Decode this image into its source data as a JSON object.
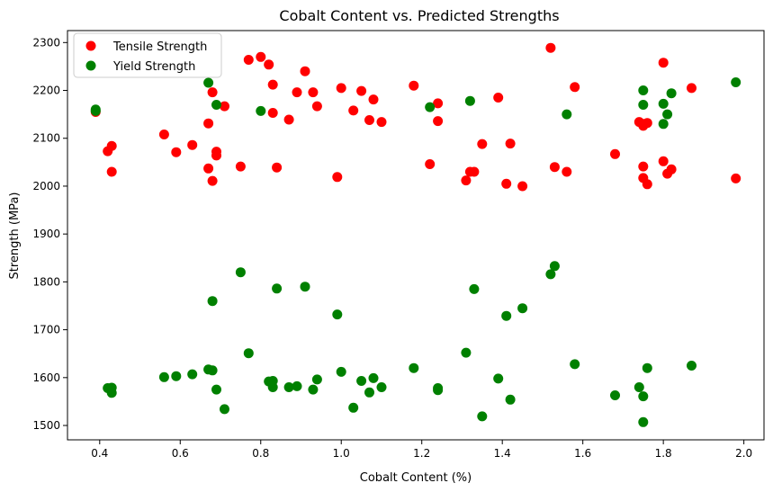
{
  "chart_data": {
    "type": "scatter",
    "title": "Cobalt Content vs. Predicted Strengths",
    "xlabel": "Cobalt Content (%)",
    "ylabel": "Strength (MPa)",
    "xlim": [
      0.32,
      2.05
    ],
    "ylim": [
      1470,
      2325
    ],
    "xticks": [
      0.4,
      0.6,
      0.8,
      1.0,
      1.2,
      1.4,
      1.6,
      1.8,
      2.0
    ],
    "xtick_labels": [
      "0.4",
      "0.6",
      "0.8",
      "1.0",
      "1.2",
      "1.4",
      "1.6",
      "1.8",
      "2.0"
    ],
    "yticks": [
      1500,
      1600,
      1700,
      1800,
      1900,
      2000,
      2100,
      2200,
      2300
    ],
    "ytick_labels": [
      "1500",
      "1600",
      "1700",
      "1800",
      "1900",
      "2000",
      "2100",
      "2200",
      "2300"
    ],
    "grid": false,
    "legend_position": "top-left",
    "series": [
      {
        "name": "Tensile Strength",
        "color": "#ff0000",
        "points": [
          [
            0.39,
            2155
          ],
          [
            0.42,
            2073
          ],
          [
            0.43,
            2084
          ],
          [
            0.43,
            2030
          ],
          [
            0.56,
            2108
          ],
          [
            0.59,
            2071
          ],
          [
            0.63,
            2086
          ],
          [
            0.67,
            2037
          ],
          [
            0.67,
            2131
          ],
          [
            0.68,
            2196
          ],
          [
            0.68,
            2011
          ],
          [
            0.69,
            2064
          ],
          [
            0.69,
            2072
          ],
          [
            0.71,
            2167
          ],
          [
            0.75,
            2041
          ],
          [
            0.77,
            2264
          ],
          [
            0.8,
            2270
          ],
          [
            0.82,
            2254
          ],
          [
            0.83,
            2212
          ],
          [
            0.83,
            2153
          ],
          [
            0.84,
            2039
          ],
          [
            0.87,
            2139
          ],
          [
            0.89,
            2196
          ],
          [
            0.91,
            2240
          ],
          [
            0.93,
            2196
          ],
          [
            0.94,
            2167
          ],
          [
            0.99,
            2019
          ],
          [
            1.0,
            2205
          ],
          [
            1.03,
            2158
          ],
          [
            1.05,
            2199
          ],
          [
            1.07,
            2138
          ],
          [
            1.08,
            2181
          ],
          [
            1.1,
            2134
          ],
          [
            1.18,
            2210
          ],
          [
            1.22,
            2046
          ],
          [
            1.24,
            2136
          ],
          [
            1.24,
            2173
          ],
          [
            1.31,
            2012
          ],
          [
            1.32,
            2030
          ],
          [
            1.33,
            2030
          ],
          [
            1.35,
            2088
          ],
          [
            1.39,
            2185
          ],
          [
            1.41,
            2005
          ],
          [
            1.42,
            2089
          ],
          [
            1.45,
            2000
          ],
          [
            1.52,
            2289
          ],
          [
            1.53,
            2040
          ],
          [
            1.56,
            2030
          ],
          [
            1.58,
            2207
          ],
          [
            1.68,
            2067
          ],
          [
            1.74,
            2134
          ],
          [
            1.75,
            2041
          ],
          [
            1.75,
            2017
          ],
          [
            1.75,
            2130
          ],
          [
            1.75,
            2126
          ],
          [
            1.76,
            2132
          ],
          [
            1.76,
            2004
          ],
          [
            1.8,
            2258
          ],
          [
            1.8,
            2052
          ],
          [
            1.81,
            2026
          ],
          [
            1.82,
            2035
          ],
          [
            1.87,
            2205
          ],
          [
            1.98,
            2016
          ]
        ]
      },
      {
        "name": "Yield Strength",
        "color": "#008000",
        "points": [
          [
            0.39,
            2160
          ],
          [
            0.39,
            2157
          ],
          [
            0.42,
            1578
          ],
          [
            0.43,
            1579
          ],
          [
            0.43,
            1568
          ],
          [
            0.56,
            1601
          ],
          [
            0.59,
            1603
          ],
          [
            0.63,
            1607
          ],
          [
            0.67,
            2216
          ],
          [
            0.67,
            1617
          ],
          [
            0.68,
            1615
          ],
          [
            0.68,
            1760
          ],
          [
            0.69,
            2170
          ],
          [
            0.69,
            1575
          ],
          [
            0.71,
            1534
          ],
          [
            0.75,
            1820
          ],
          [
            0.77,
            1651
          ],
          [
            0.8,
            2157
          ],
          [
            0.82,
            1592
          ],
          [
            0.83,
            1580
          ],
          [
            0.83,
            1593
          ],
          [
            0.84,
            1786
          ],
          [
            0.87,
            1580
          ],
          [
            0.89,
            1582
          ],
          [
            0.91,
            1790
          ],
          [
            0.93,
            1575
          ],
          [
            0.94,
            1596
          ],
          [
            0.99,
            1732
          ],
          [
            1.0,
            1612
          ],
          [
            1.03,
            1537
          ],
          [
            1.05,
            1593
          ],
          [
            1.07,
            1569
          ],
          [
            1.08,
            1599
          ],
          [
            1.1,
            1580
          ],
          [
            1.18,
            1620
          ],
          [
            1.22,
            2165
          ],
          [
            1.24,
            1574
          ],
          [
            1.24,
            1578
          ],
          [
            1.31,
            1652
          ],
          [
            1.32,
            2178
          ],
          [
            1.33,
            1785
          ],
          [
            1.35,
            1519
          ],
          [
            1.39,
            1598
          ],
          [
            1.41,
            1729
          ],
          [
            1.42,
            1554
          ],
          [
            1.45,
            1745
          ],
          [
            1.52,
            1816
          ],
          [
            1.53,
            1833
          ],
          [
            1.56,
            2150
          ],
          [
            1.58,
            1628
          ],
          [
            1.68,
            1563
          ],
          [
            1.74,
            1580
          ],
          [
            1.75,
            2200
          ],
          [
            1.75,
            2170
          ],
          [
            1.75,
            1561
          ],
          [
            1.75,
            1507
          ],
          [
            1.76,
            1620
          ],
          [
            1.8,
            2130
          ],
          [
            1.8,
            2172
          ],
          [
            1.81,
            2150
          ],
          [
            1.82,
            2194
          ],
          [
            1.87,
            1625
          ],
          [
            1.98,
            2217
          ]
        ]
      }
    ]
  }
}
